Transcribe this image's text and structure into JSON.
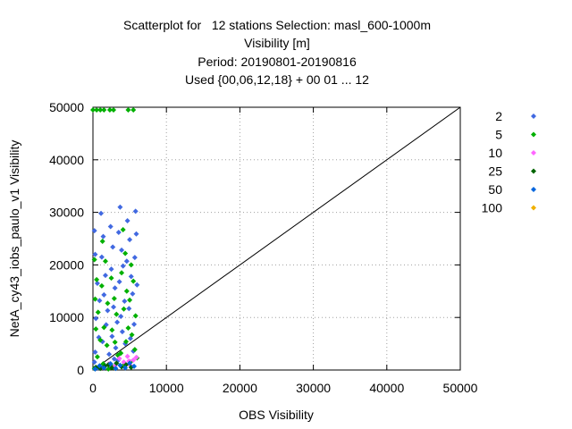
{
  "chart_data": {
    "type": "scatter",
    "title": [
      "Scatterplot for   12 stations Selection: masl_600-1000m",
      "Visibility [m]",
      "Period: 20190801-20190816",
      "Used {00,06,12,18} + 00 01 ... 12"
    ],
    "xlabel": "OBS Visibility",
    "ylabel": "NetA_cy43_iobs_paulo_v1 Visibility",
    "xlim": [
      0,
      50000
    ],
    "ylim": [
      0,
      50000
    ],
    "xticks": [
      "0",
      "10000",
      "20000",
      "30000",
      "40000",
      "50000"
    ],
    "yticks": [
      "0",
      "10000",
      "20000",
      "30000",
      "40000",
      "50000"
    ],
    "grid": true,
    "diagonal": true,
    "legend_placement": "right",
    "series": [
      {
        "name": "2",
        "color": "#4169e1",
        "points": [
          [
            200,
            26500
          ],
          [
            300,
            22000
          ],
          [
            600,
            16500
          ],
          [
            900,
            13200
          ],
          [
            400,
            9800
          ],
          [
            800,
            6200
          ],
          [
            300,
            3400
          ],
          [
            200,
            1500
          ],
          [
            700,
            400
          ],
          [
            1100,
            29800
          ],
          [
            1400,
            25400
          ],
          [
            1200,
            21500
          ],
          [
            1700,
            18000
          ],
          [
            1500,
            14300
          ],
          [
            2000,
            11300
          ],
          [
            1800,
            8600
          ],
          [
            1300,
            5400
          ],
          [
            2200,
            3000
          ],
          [
            1600,
            900
          ],
          [
            1000,
            600
          ],
          [
            2400,
            27300
          ],
          [
            2700,
            23400
          ],
          [
            2500,
            19200
          ],
          [
            3000,
            15600
          ],
          [
            2800,
            12000
          ],
          [
            3300,
            9100
          ],
          [
            2600,
            6400
          ],
          [
            3100,
            4200
          ],
          [
            2900,
            2100
          ],
          [
            2300,
            700
          ],
          [
            3700,
            31000
          ],
          [
            3500,
            26200
          ],
          [
            3900,
            22800
          ],
          [
            4100,
            19800
          ],
          [
            3600,
            16800
          ],
          [
            4300,
            13100
          ],
          [
            3800,
            10200
          ],
          [
            4000,
            7300
          ],
          [
            4400,
            5000
          ],
          [
            3400,
            1800
          ],
          [
            4700,
            28400
          ],
          [
            5000,
            24800
          ],
          [
            4600,
            20700
          ],
          [
            5200,
            17800
          ],
          [
            5400,
            14500
          ],
          [
            4900,
            11700
          ],
          [
            5600,
            8700
          ],
          [
            5100,
            6000
          ],
          [
            5800,
            30200
          ],
          [
            5900,
            25900
          ],
          [
            5700,
            21400
          ],
          [
            6000,
            16200
          ],
          [
            5500,
            3600
          ]
        ]
      },
      {
        "name": "5",
        "color": "#00b000",
        "points": [
          [
            0,
            49500
          ],
          [
            500,
            49500
          ],
          [
            1000,
            49500
          ],
          [
            1500,
            49500
          ],
          [
            2300,
            49500
          ],
          [
            2800,
            49500
          ],
          [
            4800,
            49500
          ],
          [
            5500,
            49500
          ],
          [
            200,
            21000
          ],
          [
            500,
            17200
          ],
          [
            300,
            13500
          ],
          [
            700,
            11000
          ],
          [
            400,
            7800
          ],
          [
            1000,
            5700
          ],
          [
            600,
            2500
          ],
          [
            200,
            300
          ],
          [
            1300,
            24500
          ],
          [
            1700,
            20700
          ],
          [
            1200,
            16000
          ],
          [
            2000,
            12700
          ],
          [
            1500,
            8100
          ],
          [
            1900,
            4700
          ],
          [
            1400,
            1200
          ],
          [
            2100,
            200
          ],
          [
            2500,
            17500
          ],
          [
            2900,
            13600
          ],
          [
            3200,
            10600
          ],
          [
            2600,
            7600
          ],
          [
            3000,
            5300
          ],
          [
            3400,
            2800
          ],
          [
            2700,
            600
          ],
          [
            4100,
            26700
          ],
          [
            4400,
            22200
          ],
          [
            3900,
            18500
          ],
          [
            4600,
            15000
          ],
          [
            4200,
            11600
          ],
          [
            4800,
            8000
          ],
          [
            4500,
            5400
          ],
          [
            3800,
            3200
          ],
          [
            4300,
            1100
          ],
          [
            5200,
            20000
          ],
          [
            5500,
            16900
          ],
          [
            5000,
            13300
          ],
          [
            5800,
            10300
          ],
          [
            5300,
            6700
          ],
          [
            5700,
            3900
          ],
          [
            5100,
            1500
          ],
          [
            6000,
            2300
          ]
        ]
      },
      {
        "name": "10",
        "color": "#ff66ff",
        "points": [
          [
            2200,
            1200
          ],
          [
            3000,
            800
          ],
          [
            3600,
            2200
          ],
          [
            4200,
            1500
          ],
          [
            4700,
            2600
          ],
          [
            5100,
            900
          ],
          [
            5500,
            1900
          ],
          [
            5900,
            2400
          ],
          [
            4900,
            1700
          ]
        ]
      },
      {
        "name": "25",
        "color": "#006400",
        "points": [
          [
            400,
            500
          ],
          [
            1000,
            300
          ],
          [
            1600,
            700
          ],
          [
            2100,
            1000
          ],
          [
            2600,
            400
          ],
          [
            3200,
            1300
          ],
          [
            3900,
            600
          ],
          [
            4500,
            1000
          ],
          [
            5200,
            500
          ]
        ]
      },
      {
        "name": "50",
        "color": "#0066dd",
        "points": [
          [
            300,
            200
          ],
          [
            900,
            800
          ],
          [
            1500,
            400
          ],
          [
            2400,
            1200
          ],
          [
            3100,
            300
          ],
          [
            3700,
            900
          ],
          [
            4400,
            400
          ],
          [
            5000,
            1300
          ],
          [
            5600,
            700
          ]
        ]
      },
      {
        "name": "100",
        "color": "#f0b000",
        "points": []
      }
    ]
  }
}
